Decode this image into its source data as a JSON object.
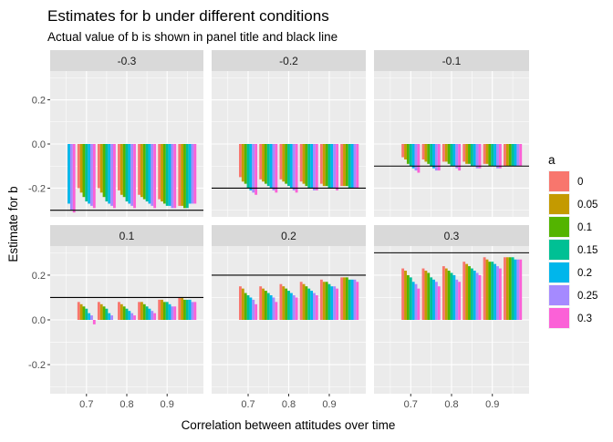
{
  "chart_data": {
    "type": "bar",
    "title": "Estimates for b under different conditions",
    "subtitle": "Actual value of b is shown in panel title and black line",
    "xlabel": "Correlation between attitudes over time",
    "ylabel": "Estimate for b",
    "ylim": [
      -0.33,
      0.33
    ],
    "y_ticks": [
      -0.2,
      0.0,
      0.2
    ],
    "y_tick_labels": [
      "-0.2",
      "0.0",
      "0.2"
    ],
    "x_range": [
      0.61,
      0.99
    ],
    "x_ticks": [
      0.7,
      0.8,
      0.9
    ],
    "x_tick_labels": [
      "0.7",
      "0.8",
      "0.9"
    ],
    "x": [
      0.65,
      0.7,
      0.75,
      0.8,
      0.85,
      0.9,
      0.95
    ],
    "bar_group_width": 0.045,
    "grid": true,
    "legend": {
      "title": "a",
      "placement": "right",
      "items": [
        {
          "label": "0",
          "color": "#F8766D"
        },
        {
          "label": "0.05",
          "color": "#C49A00"
        },
        {
          "label": "0.1",
          "color": "#53B400"
        },
        {
          "label": "0.15",
          "color": "#00C094"
        },
        {
          "label": "0.2",
          "color": "#00B6EB"
        },
        {
          "label": "0.25",
          "color": "#A58AFF"
        },
        {
          "label": "0.3",
          "color": "#FB61D7"
        }
      ]
    },
    "panels": [
      {
        "strip": "-0.3",
        "b": -0.3,
        "values": [
          [
            null,
            null,
            null,
            null,
            -0.27,
            -0.3,
            -0.31
          ],
          [
            -0.2,
            -0.22,
            -0.24,
            -0.26,
            -0.27,
            -0.28,
            -0.29
          ],
          [
            -0.2,
            -0.22,
            -0.24,
            -0.26,
            -0.27,
            -0.28,
            -0.29
          ],
          [
            -0.21,
            -0.23,
            -0.24,
            -0.26,
            -0.27,
            -0.28,
            -0.29
          ],
          [
            -0.23,
            -0.24,
            -0.25,
            -0.26,
            -0.27,
            -0.28,
            -0.29
          ],
          [
            -0.25,
            -0.26,
            -0.27,
            -0.28,
            -0.28,
            -0.29,
            -0.29
          ],
          [
            -0.28,
            -0.28,
            -0.29,
            -0.29,
            -0.27,
            -0.27,
            -0.27
          ]
        ]
      },
      {
        "strip": "-0.2",
        "b": -0.2,
        "values": [
          [
            null,
            null,
            null,
            null,
            null,
            null,
            null
          ],
          [
            -0.15,
            -0.17,
            -0.18,
            -0.2,
            -0.21,
            -0.22,
            -0.23
          ],
          [
            -0.16,
            -0.17,
            -0.18,
            -0.19,
            -0.2,
            -0.21,
            -0.22
          ],
          [
            -0.16,
            -0.17,
            -0.18,
            -0.19,
            -0.2,
            -0.21,
            -0.22
          ],
          [
            -0.17,
            -0.18,
            -0.19,
            -0.2,
            -0.2,
            -0.21,
            -0.21
          ],
          [
            -0.18,
            -0.19,
            -0.19,
            -0.2,
            -0.2,
            -0.2,
            -0.21
          ],
          [
            -0.19,
            -0.19,
            -0.19,
            -0.2,
            -0.2,
            -0.2,
            -0.2
          ]
        ]
      },
      {
        "strip": "-0.1",
        "b": -0.1,
        "values": [
          [
            null,
            null,
            null,
            null,
            null,
            null,
            null
          ],
          [
            -0.06,
            -0.07,
            -0.09,
            -0.1,
            -0.11,
            -0.12,
            -0.13
          ],
          [
            -0.07,
            -0.08,
            -0.09,
            -0.1,
            -0.11,
            -0.12,
            -0.12
          ],
          [
            -0.08,
            -0.08,
            -0.09,
            -0.1,
            -0.1,
            -0.11,
            -0.12
          ],
          [
            -0.08,
            -0.09,
            -0.09,
            -0.1,
            -0.1,
            -0.11,
            -0.11
          ],
          [
            -0.09,
            -0.09,
            -0.1,
            -0.1,
            -0.1,
            -0.11,
            -0.11
          ],
          [
            -0.1,
            -0.1,
            -0.1,
            -0.1,
            -0.1,
            -0.1,
            -0.1
          ]
        ]
      },
      {
        "strip": "0.1",
        "b": 0.1,
        "values": [
          [
            null,
            null,
            null,
            null,
            null,
            null,
            null
          ],
          [
            0.08,
            0.07,
            0.06,
            0.05,
            0.03,
            0.02,
            -0.02
          ],
          [
            0.08,
            0.07,
            0.06,
            0.05,
            0.03,
            0.02,
            0.0
          ],
          [
            0.08,
            0.07,
            0.06,
            0.05,
            0.04,
            0.03,
            0.02
          ],
          [
            0.08,
            0.08,
            0.07,
            0.06,
            0.05,
            0.04,
            0.03
          ],
          [
            0.09,
            0.09,
            0.08,
            0.08,
            0.07,
            0.06,
            0.06
          ],
          [
            0.1,
            0.1,
            0.09,
            0.09,
            0.09,
            0.08,
            0.08
          ]
        ]
      },
      {
        "strip": "0.2",
        "b": 0.2,
        "values": [
          [
            null,
            null,
            null,
            null,
            null,
            null,
            null
          ],
          [
            0.15,
            0.14,
            0.12,
            0.11,
            0.1,
            0.09,
            0.07
          ],
          [
            0.15,
            0.14,
            0.13,
            0.12,
            0.11,
            0.1,
            0.08
          ],
          [
            0.16,
            0.15,
            0.14,
            0.13,
            0.12,
            0.11,
            0.1
          ],
          [
            0.17,
            0.16,
            0.15,
            0.14,
            0.13,
            0.12,
            0.11
          ],
          [
            0.18,
            0.17,
            0.17,
            0.16,
            0.15,
            0.15,
            0.14
          ],
          [
            0.19,
            0.19,
            0.19,
            0.18,
            0.18,
            0.18,
            0.17
          ]
        ]
      },
      {
        "strip": "0.3",
        "b": 0.3,
        "values": [
          [
            null,
            null,
            null,
            null,
            null,
            null,
            null
          ],
          [
            0.23,
            0.22,
            0.2,
            0.19,
            0.17,
            0.16,
            0.14
          ],
          [
            0.23,
            0.22,
            0.21,
            0.19,
            0.18,
            0.17,
            0.15
          ],
          [
            0.24,
            0.23,
            0.22,
            0.21,
            0.2,
            0.18,
            0.17
          ],
          [
            0.26,
            0.25,
            0.24,
            0.23,
            0.22,
            0.21,
            0.2
          ],
          [
            0.28,
            0.27,
            0.26,
            0.26,
            0.25,
            0.24,
            0.23
          ],
          [
            0.28,
            0.28,
            0.28,
            0.28,
            0.27,
            0.27,
            0.27
          ]
        ]
      }
    ]
  }
}
